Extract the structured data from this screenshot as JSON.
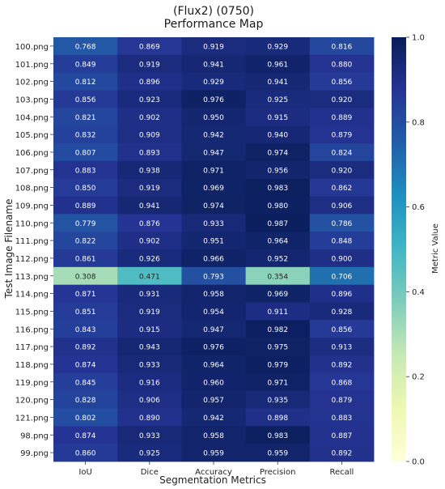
{
  "chart_data": {
    "type": "heatmap",
    "title": "(Flux2) (0750)",
    "subtitle": "Performance Map",
    "xlabel": "Segmentation Metrics",
    "ylabel": "Test Image Filename",
    "colorbar_label": "Metric Value",
    "colormap": "YlGnBu",
    "vmin": 0.0,
    "vmax": 1.0,
    "colorbar_ticks": [
      "0.0",
      "0.2",
      "0.4",
      "0.6",
      "0.8",
      "1.0"
    ],
    "columns": [
      "IoU",
      "Dice",
      "Accuracy",
      "Precision",
      "Recall"
    ],
    "rows": [
      "100.png",
      "101.png",
      "102.png",
      "103.png",
      "104.png",
      "105.png",
      "106.png",
      "107.png",
      "108.png",
      "109.png",
      "110.png",
      "111.png",
      "112.png",
      "113.png",
      "114.png",
      "115.png",
      "116.png",
      "117.png",
      "118.png",
      "119.png",
      "120.png",
      "121.png",
      "98.png",
      "99.png"
    ],
    "values": [
      [
        0.768,
        0.869,
        0.919,
        0.929,
        0.816
      ],
      [
        0.849,
        0.919,
        0.941,
        0.961,
        0.88
      ],
      [
        0.812,
        0.896,
        0.929,
        0.941,
        0.856
      ],
      [
        0.856,
        0.923,
        0.976,
        0.925,
        0.92
      ],
      [
        0.821,
        0.902,
        0.95,
        0.915,
        0.889
      ],
      [
        0.832,
        0.909,
        0.942,
        0.94,
        0.879
      ],
      [
        0.807,
        0.893,
        0.947,
        0.974,
        0.824
      ],
      [
        0.883,
        0.938,
        0.971,
        0.956,
        0.92
      ],
      [
        0.85,
        0.919,
        0.969,
        0.983,
        0.862
      ],
      [
        0.889,
        0.941,
        0.974,
        0.98,
        0.906
      ],
      [
        0.779,
        0.876,
        0.933,
        0.987,
        0.786
      ],
      [
        0.822,
        0.902,
        0.951,
        0.964,
        0.848
      ],
      [
        0.861,
        0.926,
        0.966,
        0.952,
        0.9
      ],
      [
        0.308,
        0.471,
        0.793,
        0.354,
        0.706
      ],
      [
        0.871,
        0.931,
        0.958,
        0.969,
        0.896
      ],
      [
        0.851,
        0.919,
        0.954,
        0.911,
        0.928
      ],
      [
        0.843,
        0.915,
        0.947,
        0.982,
        0.856
      ],
      [
        0.892,
        0.943,
        0.976,
        0.975,
        0.913
      ],
      [
        0.874,
        0.933,
        0.964,
        0.979,
        0.892
      ],
      [
        0.845,
        0.916,
        0.96,
        0.971,
        0.868
      ],
      [
        0.828,
        0.906,
        0.957,
        0.935,
        0.879
      ],
      [
        0.802,
        0.89,
        0.942,
        0.898,
        0.883
      ],
      [
        0.874,
        0.933,
        0.958,
        0.983,
        0.887
      ],
      [
        0.86,
        0.925,
        0.959,
        0.959,
        0.892
      ]
    ]
  }
}
